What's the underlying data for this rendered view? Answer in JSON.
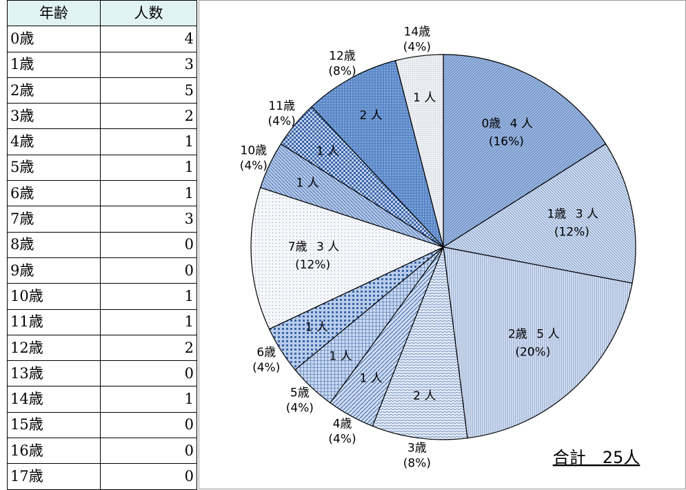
{
  "table": {
    "header": [
      "年齢",
      "人数"
    ],
    "rows": [
      [
        "0歳",
        "4"
      ],
      [
        "1歳",
        "3"
      ],
      [
        "2歳",
        "5"
      ],
      [
        "3歳",
        "2"
      ],
      [
        "4歳",
        "1"
      ],
      [
        "5歳",
        "1"
      ],
      [
        "6歳",
        "1"
      ],
      [
        "7歳",
        "3"
      ],
      [
        "8歳",
        "0"
      ],
      [
        "9歳",
        "0"
      ],
      [
        "10歳",
        "1"
      ],
      [
        "11歳",
        "1"
      ],
      [
        "12歳",
        "2"
      ],
      [
        "13歳",
        "0"
      ],
      [
        "14歳",
        "1"
      ],
      [
        "15歳",
        "0"
      ],
      [
        "16歳",
        "0"
      ],
      [
        "17歳",
        "0"
      ]
    ]
  },
  "chart_data": {
    "type": "pie",
    "categories": [
      "0歳",
      "1歳",
      "2歳",
      "3歳",
      "4歳",
      "5歳",
      "6歳",
      "7歳",
      "10歳",
      "11歳",
      "12歳",
      "14歳"
    ],
    "values": [
      4,
      3,
      5,
      2,
      1,
      1,
      1,
      3,
      1,
      1,
      2,
      1
    ],
    "value_labels": [
      "4 人",
      "3 人",
      "5 人",
      "2 人",
      "1 人",
      "1 人",
      "1 人",
      "3 人",
      "1 人",
      "1 人",
      "2 人",
      "1 人"
    ],
    "percent_labels": [
      "(16%)",
      "(12%)",
      "(20%)",
      "(8%)",
      "(4%)",
      "(4%)",
      "(4%)",
      "(12%)",
      "(4%)",
      "(4%)",
      "(8%)",
      "(4%)"
    ],
    "colors": [
      "#9db8e0",
      "#d5e0f2",
      "#dfe7f5",
      "#e3eaf6",
      "#cfdcf0",
      "#c9d8f0",
      "#b9cdeb",
      "#f4f6fb",
      "#b3c8e8",
      "#c2d3ee",
      "#5b88c9",
      "#eceff4"
    ],
    "annotation": "合計　25人"
  }
}
